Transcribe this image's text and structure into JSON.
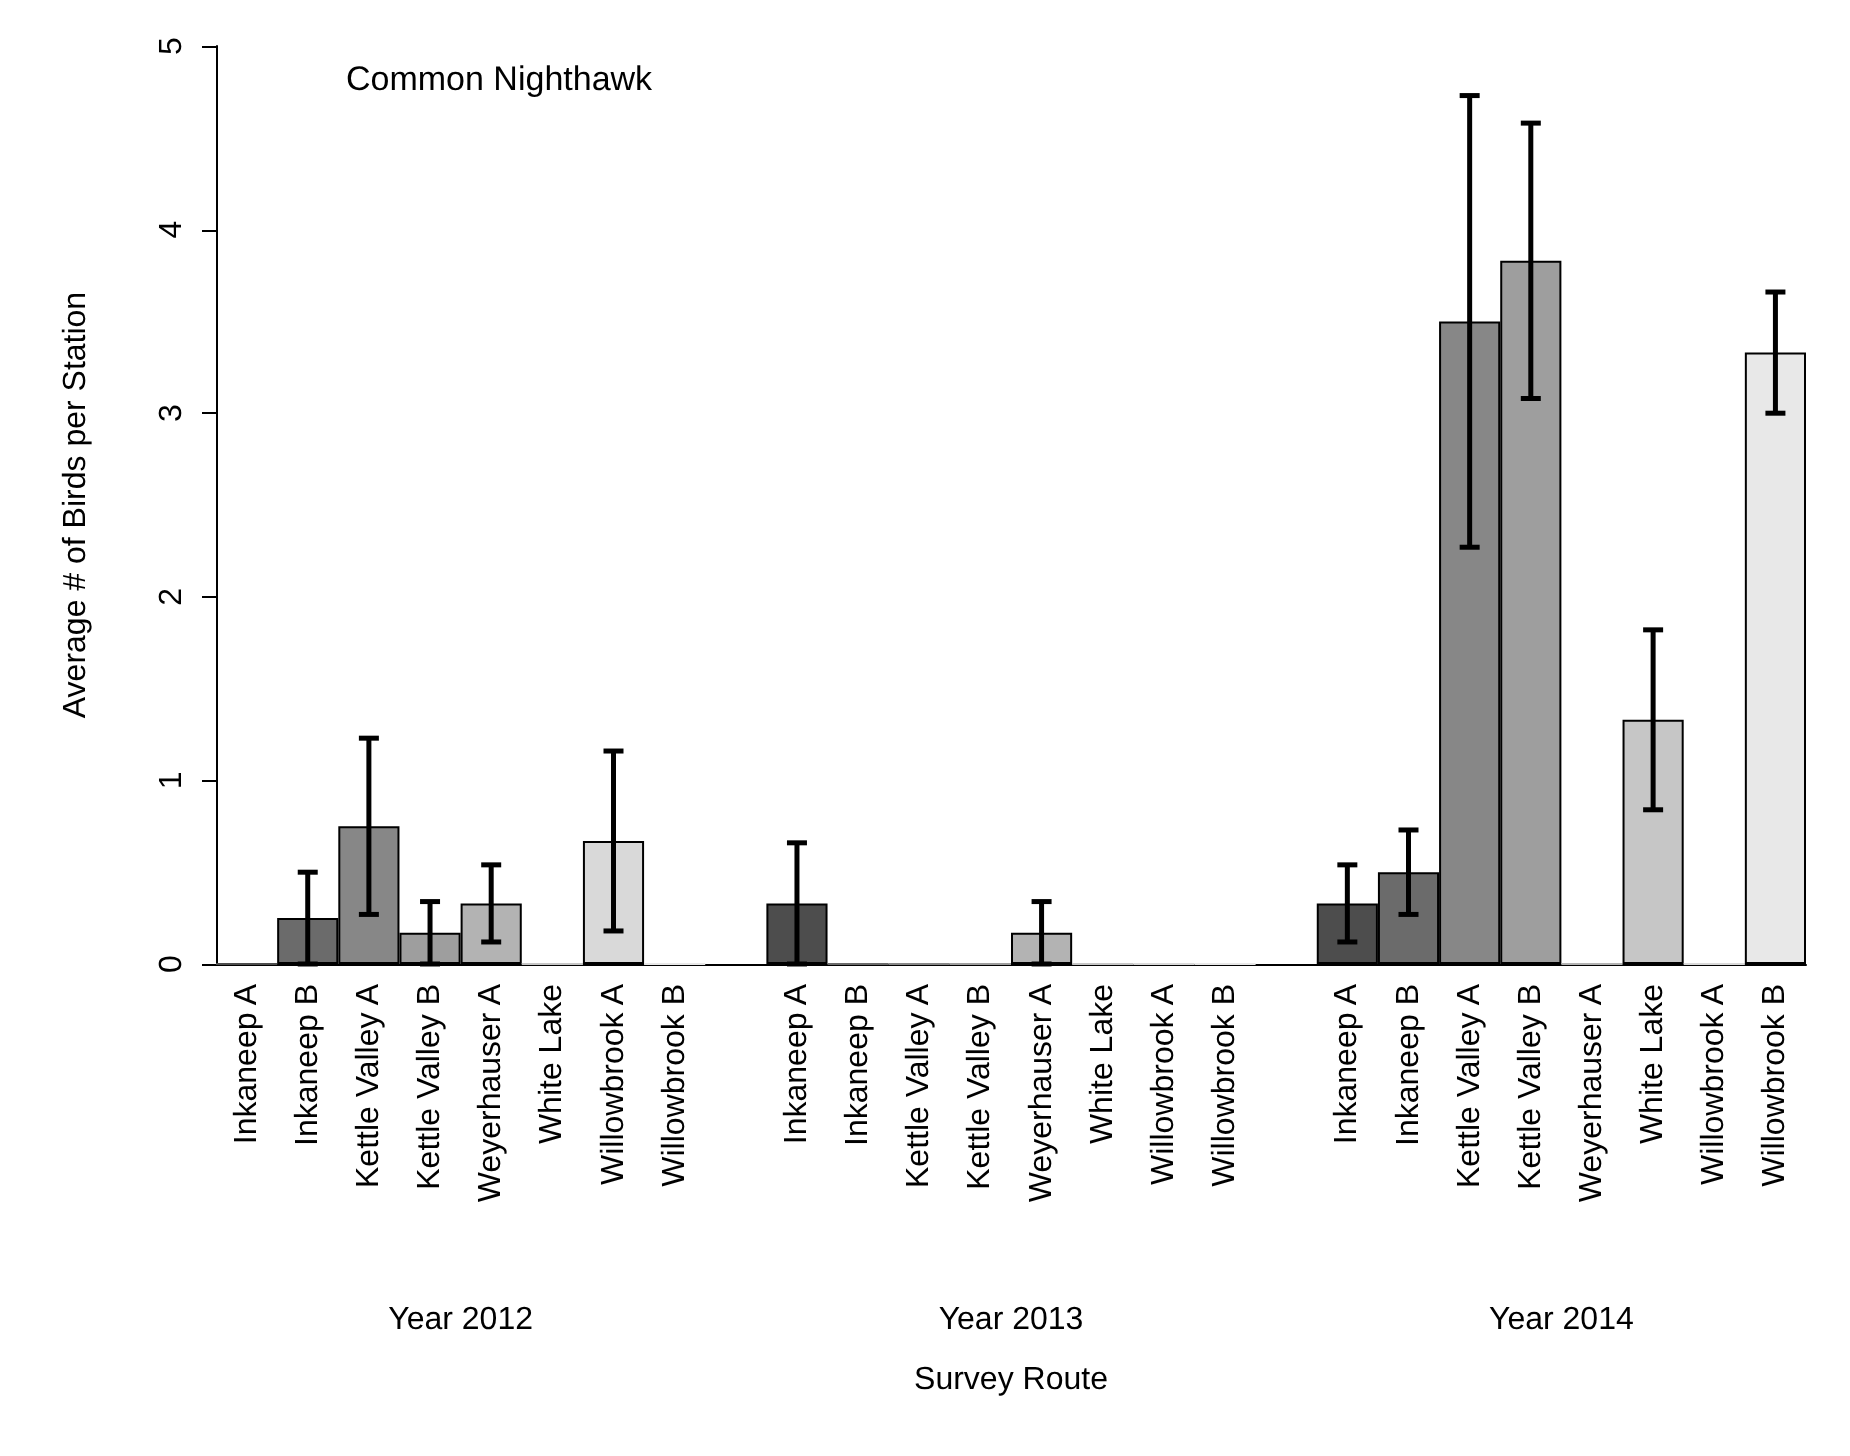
{
  "chart_data": {
    "type": "bar",
    "title": "Common Nighthawk",
    "ylabel": "Average # of Birds per Station",
    "categories": [
      "Inkaneep A",
      "Inkaneep B",
      "Kettle Valley A",
      "Kettle Valley B",
      "Weyerhauser A",
      "White Lake",
      "Willowbrook A",
      "Willowbrook B",
      null,
      "Inkaneep A",
      "Inkaneep B",
      "Kettle Valley A",
      "Kettle Valley B",
      "Weyerhauser A",
      "White Lake",
      "Willowbrook A",
      "Willowbrook B",
      null,
      "Inkaneep A",
      "Inkaneep B",
      "Kettle Valley A",
      "Kettle Valley B",
      "Weyerhauser A",
      "White Lake",
      "Willowbrook A",
      "Willowbrook B"
    ],
    "values": [
      0,
      0.25,
      0.75,
      0.17,
      0.33,
      0,
      0.67,
      0,
      null,
      0.33,
      0,
      0,
      0,
      0.17,
      0,
      0,
      0,
      null,
      0.33,
      0.5,
      3.5,
      3.83,
      0,
      1.33,
      0,
      3.33
    ],
    "errors": [
      null,
      0.25,
      0.48,
      0.17,
      0.21,
      null,
      0.49,
      null,
      null,
      0.33,
      null,
      null,
      null,
      0.17,
      null,
      null,
      null,
      null,
      0.21,
      0.23,
      1.23,
      0.75,
      null,
      0.49,
      null,
      0.33
    ],
    "colors": [
      "#4d4d4d",
      "#6b6b6b",
      "#878787",
      "#9e9e9e",
      "#b3b3b3",
      "#c6c6c6",
      "#d9d9d9",
      "#e8e8e8",
      null,
      "#4d4d4d",
      "#6b6b6b",
      "#878787",
      "#9e9e9e",
      "#b3b3b3",
      "#c6c6c6",
      "#d9d9d9",
      "#e8e8e8",
      null,
      "#4d4d4d",
      "#6b6b6b",
      "#878787",
      "#9e9e9e",
      "#b3b3b3",
      "#c6c6c6",
      "#d9d9d9",
      "#e8e8e8"
    ],
    "annotations": [
      "Year 2012",
      "Year 2013",
      "Year 2014",
      "Survey Route"
    ],
    "ylim": [
      0,
      5
    ],
    "yticks": [
      0,
      1,
      2,
      3,
      4,
      5
    ]
  }
}
